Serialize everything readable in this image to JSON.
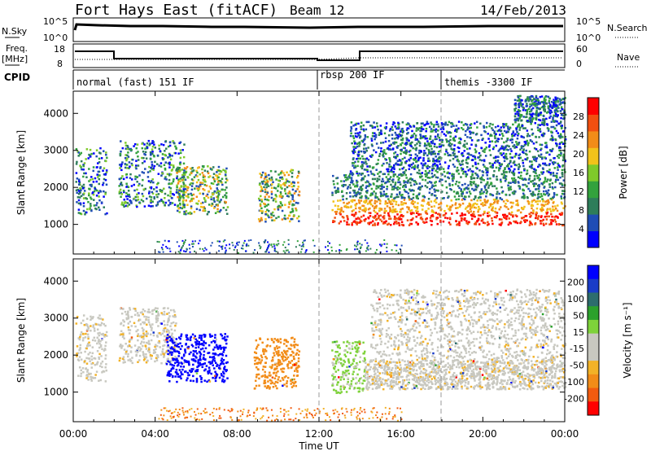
{
  "header": {
    "station": "Fort Hays East (fitACF)",
    "beam": "Beam 12",
    "date": "14/Feb/2013"
  },
  "strip_labels": {
    "nsky": "N.Sky",
    "nsearch": "N.Search",
    "freq_top": "Freq.",
    "freq_unit": "[MHz]",
    "nave": "Nave",
    "cpid": "CPID",
    "nsky_ticks": [
      "10^5",
      "10^0"
    ],
    "nsearch_ticks": [
      "10^5",
      "10^0"
    ],
    "freq_ticks": [
      "18",
      "8"
    ],
    "nave_ticks": [
      "60",
      "0"
    ]
  },
  "cpid_modes": [
    {
      "label": "normal (fast) 151 IF",
      "start_h": 0
    },
    {
      "label": "rbsp 200 IF",
      "start_h": 12
    },
    {
      "label": "themis -3300 IF",
      "start_h": 18
    }
  ],
  "colors": {
    "power": [
      "#0000ff",
      "#1f4db5",
      "#2e7d5a",
      "#33a23d",
      "#7fca2a",
      "#f2c21a",
      "#f28c18",
      "#f24f10",
      "#ff0000"
    ],
    "velocity": [
      "#0000ff",
      "#1a3cc8",
      "#2d6d6d",
      "#2ca12c",
      "#7ed23a",
      "#c8c8c0",
      "#c8c8c0",
      "#f2b227",
      "#f28c18",
      "#f25b0f",
      "#ff0000"
    ]
  },
  "chart_data": [
    {
      "type": "heatmap",
      "title": "Power",
      "xlabel": "Time UT",
      "ylabel": "Slant Range [km]",
      "xlim": [
        0,
        24
      ],
      "ylim": [
        200,
        4600
      ],
      "x_ticks": [
        "00:00",
        "04:00",
        "08:00",
        "12:00",
        "16:00",
        "20:00",
        "00:00"
      ],
      "y_ticks": [
        "1000",
        "2000",
        "3000",
        "4000"
      ],
      "colorbar_label": "Power [dB]",
      "colorbar_ticks": [
        "4",
        "8",
        "12",
        "16",
        "20",
        "24",
        "28"
      ],
      "regions": [
        {
          "t0": 0.1,
          "t1": 1.6,
          "r0": 1300,
          "r1": 3100,
          "level": "mixed"
        },
        {
          "t0": 2.2,
          "t1": 5.4,
          "r0": 1500,
          "r1": 3300,
          "level": "mixed"
        },
        {
          "t0": 5.0,
          "t1": 7.5,
          "r0": 1300,
          "r1": 2600,
          "level": "mid"
        },
        {
          "t0": 9.0,
          "t1": 11.0,
          "r0": 1100,
          "r1": 2500,
          "level": "mid"
        },
        {
          "t0": 12.6,
          "t1": 24,
          "r0": 1000,
          "r1": 2400,
          "level": "high"
        },
        {
          "t0": 13.5,
          "t1": 24,
          "r0": 2400,
          "r1": 3800,
          "level": "low"
        },
        {
          "t0": 21.5,
          "t1": 24,
          "r0": 3800,
          "r1": 4500,
          "level": "low"
        }
      ]
    },
    {
      "type": "heatmap",
      "title": "Velocity",
      "xlabel": "Time UT",
      "ylabel": "Slant Range [km]",
      "xlim": [
        0,
        24
      ],
      "ylim": [
        200,
        4600
      ],
      "x_ticks": [
        "00:00",
        "04:00",
        "08:00",
        "12:00",
        "16:00",
        "20:00",
        "00:00"
      ],
      "y_ticks": [
        "1000",
        "2000",
        "3000",
        "4000"
      ],
      "colorbar_label": "Velocity [m s⁻¹]",
      "colorbar_ticks": [
        "200",
        "100",
        "50",
        "15",
        "-15",
        "-50",
        "-100",
        "-200"
      ],
      "regions": [
        {
          "t0": 0.1,
          "t1": 1.6,
          "r0": 1300,
          "r1": 3100,
          "vel": 0
        },
        {
          "t0": 2.2,
          "t1": 5.0,
          "r0": 1800,
          "r1": 3300,
          "vel": 0
        },
        {
          "t0": 4.5,
          "t1": 7.5,
          "r0": 1300,
          "r1": 2600,
          "vel": 180
        },
        {
          "t0": 8.8,
          "t1": 11.0,
          "r0": 1100,
          "r1": 2500,
          "vel": -60
        },
        {
          "t0": 12.6,
          "t1": 14.2,
          "r0": 1000,
          "r1": 2400,
          "vel": 40
        },
        {
          "t0": 14.2,
          "t1": 24,
          "r0": 1100,
          "r1": 1900,
          "vel": 0
        },
        {
          "t0": 14.5,
          "t1": 24,
          "r0": 1900,
          "r1": 3800,
          "vel": 0
        }
      ]
    }
  ]
}
